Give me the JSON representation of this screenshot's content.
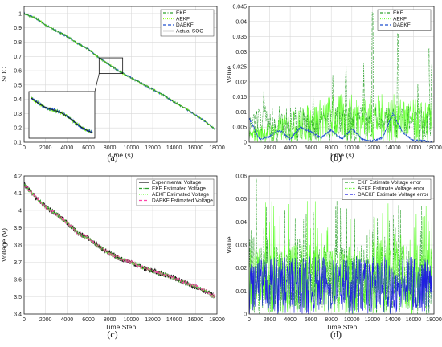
{
  "chart_data": [
    {
      "type": "line",
      "panel_label": "(a)",
      "xlabel": "Time (s)",
      "ylabel": "SOC",
      "xlim": [
        0,
        18000
      ],
      "ylim": [
        0.1,
        1.05
      ],
      "xticks": [
        "0",
        "2000",
        "4000",
        "6000",
        "8000",
        "10000",
        "12000",
        "14000",
        "16000",
        "18000"
      ],
      "yticks": [
        "0.1",
        "0.2",
        "0.3",
        "0.4",
        "0.5",
        "0.6",
        "0.7",
        "0.8",
        "0.9",
        "1"
      ],
      "grid": true,
      "legend_position": "top-right",
      "series": [
        {
          "name": "EKF",
          "color": "#2ca02c",
          "style": "dash-dot"
        },
        {
          "name": "AEKF",
          "color": "#7fff00",
          "style": "dotted"
        },
        {
          "name": "DAEKF",
          "color": "#1f4fcf",
          "style": "dashed"
        },
        {
          "name": "Actual SOC",
          "color": "#111111",
          "style": "solid"
        }
      ],
      "x": [
        0,
        1000,
        2000,
        3000,
        4000,
        5000,
        6000,
        7000,
        8000,
        9000,
        10000,
        11000,
        12000,
        13000,
        14000,
        15000,
        16000,
        17000,
        17800
      ],
      "values": [
        1.0,
        0.97,
        0.92,
        0.88,
        0.84,
        0.79,
        0.75,
        0.69,
        0.64,
        0.59,
        0.55,
        0.51,
        0.47,
        0.43,
        0.38,
        0.34,
        0.29,
        0.24,
        0.19
      ],
      "inset": "zoom of 7000–9000 s region"
    },
    {
      "type": "line",
      "panel_label": "(b)",
      "xlabel": "Time (s)",
      "ylabel": "Value",
      "xlim": [
        0,
        18000
      ],
      "ylim": [
        0,
        0.045
      ],
      "xticks": [
        "0",
        "2000",
        "4000",
        "6000",
        "8000",
        "10000",
        "12000",
        "14000",
        "16000",
        "18000"
      ],
      "yticks": [
        "0",
        "0.005",
        "0.01",
        "0.015",
        "0.02",
        "0.025",
        "0.03",
        "0.035",
        "0.04",
        "0.045"
      ],
      "grid": true,
      "legend_position": "top-right",
      "series": [
        {
          "name": "EKF",
          "color": "#2ca02c",
          "style": "dash-dot",
          "peak": 0.043,
          "peak_x": 12000
        },
        {
          "name": "AEKF",
          "color": "#66ff33",
          "style": "dotted",
          "typical": 0.01
        },
        {
          "name": "DAEKF",
          "color": "#1f4fcf",
          "style": "dashed",
          "x": [
            0,
            1000,
            2000,
            3000,
            4000,
            5000,
            6000,
            7000,
            8000,
            9000,
            10000,
            11000,
            12000,
            13000,
            14000,
            15000,
            16000,
            17000,
            17800
          ],
          "values": [
            0.008,
            0.001,
            0.002,
            0.004,
            0.001,
            0.005,
            0.0035,
            0.0015,
            0.004,
            0.001,
            0.0045,
            0.001,
            0.0005,
            0.0015,
            0.0095,
            0.003,
            0.0005,
            0.0005,
            0.0
          ]
        }
      ]
    },
    {
      "type": "line",
      "panel_label": "(c)",
      "xlabel": "Time Step",
      "ylabel": "Voltage (V)",
      "xlim": [
        0,
        18000
      ],
      "ylim": [
        3.4,
        4.2
      ],
      "xticks": [
        "0",
        "2000",
        "4000",
        "6000",
        "8000",
        "10000",
        "12000",
        "14000",
        "16000",
        "18000"
      ],
      "yticks": [
        "3.4",
        "3.5",
        "3.6",
        "3.7",
        "3.8",
        "3.9",
        "4",
        "4.1",
        "4.2"
      ],
      "grid": true,
      "legend_position": "top-right",
      "series": [
        {
          "name": "Experimental Voltage",
          "color": "#111111",
          "style": "solid"
        },
        {
          "name": "EKF Estimated Voltage",
          "color": "#2ca02c",
          "style": "dash-dot"
        },
        {
          "name": "AEKF Estimated Voltage",
          "color": "#66ff33",
          "style": "dotted"
        },
        {
          "name": "DAEKF Estimated Voltage",
          "color": "#ff44aa",
          "style": "dashed"
        }
      ],
      "x": [
        0,
        1000,
        2000,
        3000,
        4000,
        5000,
        6000,
        7000,
        8000,
        9000,
        10000,
        11000,
        12000,
        13000,
        14000,
        15000,
        16000,
        17000,
        17800
      ],
      "values": [
        4.15,
        4.08,
        4.02,
        3.98,
        3.93,
        3.87,
        3.84,
        3.79,
        3.75,
        3.72,
        3.7,
        3.67,
        3.65,
        3.63,
        3.61,
        3.58,
        3.56,
        3.53,
        3.5
      ]
    },
    {
      "type": "line",
      "panel_label": "(d)",
      "xlabel": "Time Step",
      "ylabel": "Value",
      "xlim": [
        0,
        18000
      ],
      "ylim": [
        0,
        0.06
      ],
      "xticks": [
        "0",
        "2000",
        "4000",
        "6000",
        "8000",
        "10000",
        "12000",
        "14000",
        "16000",
        "18000"
      ],
      "yticks": [
        "0",
        "0.01",
        "0.02",
        "0.03",
        "0.04",
        "0.05",
        "0.06"
      ],
      "grid": true,
      "legend_position": "top-right",
      "series": [
        {
          "name": "EKF Estimate Voltage error",
          "color": "#2ca02c",
          "style": "dash-dot",
          "peak": 0.059,
          "peak_x": 700
        },
        {
          "name": "AEKF Estimate Voltage error",
          "color": "#66ff33",
          "style": "dotted",
          "typical": 0.03
        },
        {
          "name": "DAEKF Estimate Voltage error",
          "color": "#1f1fe0",
          "style": "dashed",
          "typical": 0.025
        }
      ]
    }
  ]
}
